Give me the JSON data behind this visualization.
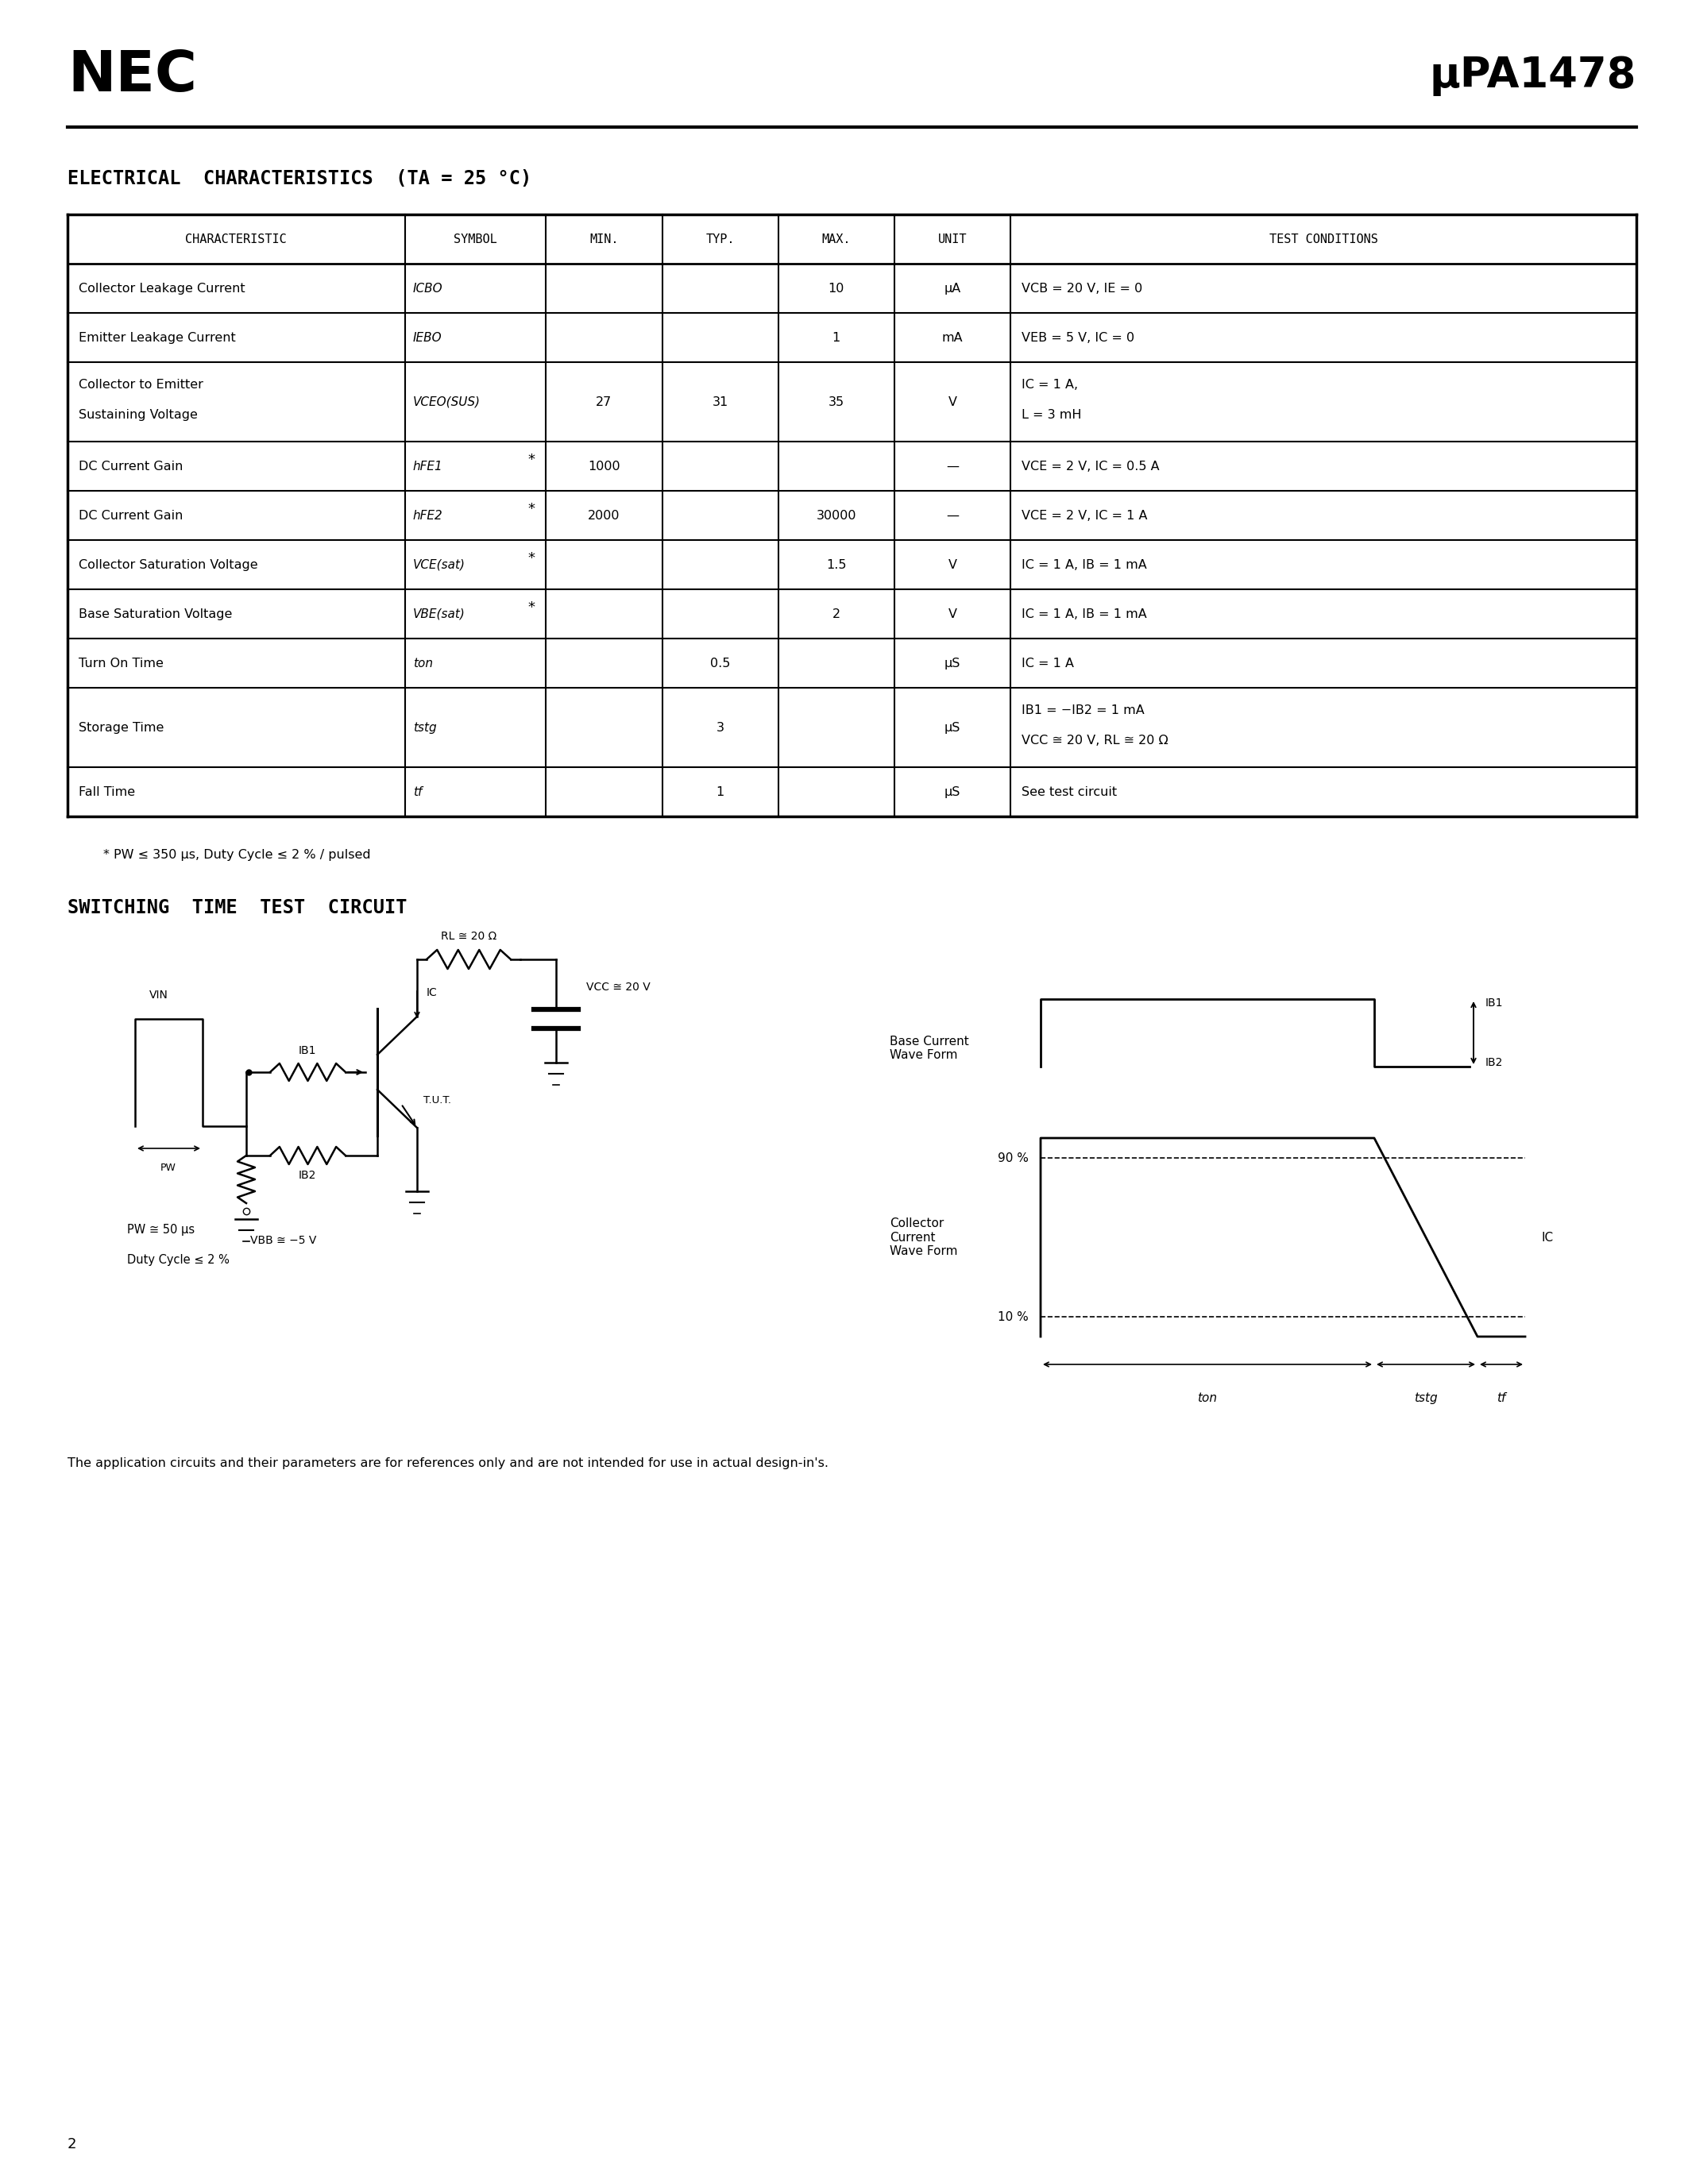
{
  "title_left": "NEC",
  "title_right": "μPA1478",
  "section1_title": "ELECTRICAL  CHARACTERISTICS  (TA = 25 °C)",
  "table_headers": [
    "CHARACTERISTIC",
    "SYMBOL",
    "MIN.",
    "TYP.",
    "MAX.",
    "UNIT",
    "TEST CONDITIONS"
  ],
  "table_rows": [
    [
      "Collector Leakage Current",
      "ICBO",
      "",
      "",
      "10",
      "μA",
      "VCB = 20 V, IE = 0"
    ],
    [
      "Emitter Leakage Current",
      "IEBO",
      "",
      "",
      "1",
      "mA",
      "VEB = 5 V, IC = 0"
    ],
    [
      "Collector to Emitter\nSustaining Voltage",
      "VCEO(SUS)",
      "27",
      "31",
      "35",
      "V",
      "IC = 1 A,\nL = 3 mH"
    ],
    [
      "DC Current Gain",
      "hFE1",
      "1000",
      "",
      "",
      "—",
      "VCE = 2 V, IC = 0.5 A"
    ],
    [
      "DC Current Gain",
      "hFE2",
      "2000",
      "",
      "30000",
      "—",
      "VCE = 2 V, IC = 1 A"
    ],
    [
      "Collector Saturation Voltage",
      "VCE(sat)",
      "",
      "",
      "1.5",
      "V",
      "IC = 1 A, IB = 1 mA"
    ],
    [
      "Base Saturation Voltage",
      "VBE(sat)",
      "",
      "",
      "2",
      "V",
      "IC = 1 A, IB = 1 mA"
    ],
    [
      "Turn On Time",
      "ton",
      "",
      "0.5",
      "",
      "μS",
      "IC = 1 A"
    ],
    [
      "Storage Time",
      "tstg",
      "",
      "3",
      "",
      "μS",
      "IB1 = −IB2 = 1 mA\nVCC ≅ 20 V, RL ≅ 20 Ω"
    ],
    [
      "Fall Time",
      "tf",
      "",
      "1",
      "",
      "μS",
      "See test circuit"
    ]
  ],
  "asterisk_rows": [
    3,
    4,
    5,
    6
  ],
  "footnote": "* PW ≤ 350 μs, Duty Cycle ≤ 2 % / pulsed",
  "section2_title": "SWITCHING  TIME  TEST  CIRCUIT",
  "application_note": "The application circuits and their parameters are for references only and are not intended for use in actual design-in's.",
  "page_number": "2",
  "bg_color": "#ffffff"
}
